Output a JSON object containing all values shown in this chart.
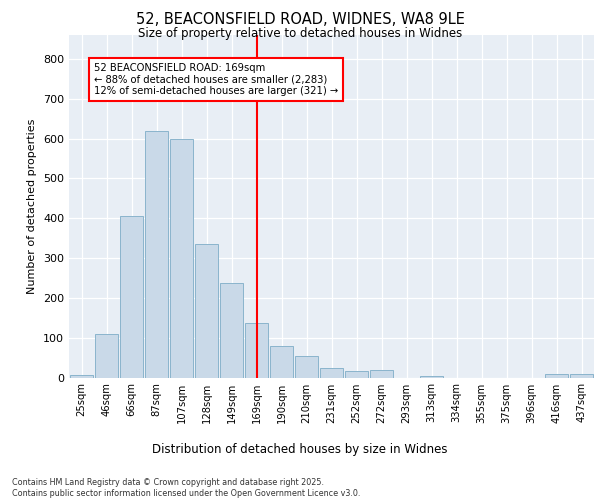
{
  "title_line1": "52, BEACONSFIELD ROAD, WIDNES, WA8 9LE",
  "title_line2": "Size of property relative to detached houses in Widnes",
  "xlabel": "Distribution of detached houses by size in Widnes",
  "ylabel": "Number of detached properties",
  "bar_labels": [
    "25sqm",
    "46sqm",
    "66sqm",
    "87sqm",
    "107sqm",
    "128sqm",
    "149sqm",
    "169sqm",
    "190sqm",
    "210sqm",
    "231sqm",
    "252sqm",
    "272sqm",
    "293sqm",
    "313sqm",
    "334sqm",
    "355sqm",
    "375sqm",
    "396sqm",
    "416sqm",
    "437sqm"
  ],
  "bar_values": [
    7,
    110,
    405,
    620,
    598,
    335,
    238,
    138,
    80,
    53,
    23,
    17,
    18,
    0,
    5,
    0,
    0,
    0,
    0,
    8,
    9
  ],
  "bar_color": "#c9d9e8",
  "bar_edgecolor": "#8ab4cc",
  "vline_x": 7,
  "vline_color": "red",
  "annotation_text": "52 BEACONSFIELD ROAD: 169sqm\n← 88% of detached houses are smaller (2,283)\n12% of semi-detached houses are larger (321) →",
  "annotation_box_edgecolor": "red",
  "background_color": "#e8eef5",
  "ylim": [
    0,
    860
  ],
  "yticks": [
    0,
    100,
    200,
    300,
    400,
    500,
    600,
    700,
    800
  ],
  "footer_line1": "Contains HM Land Registry data © Crown copyright and database right 2025.",
  "footer_line2": "Contains public sector information licensed under the Open Government Licence v3.0."
}
